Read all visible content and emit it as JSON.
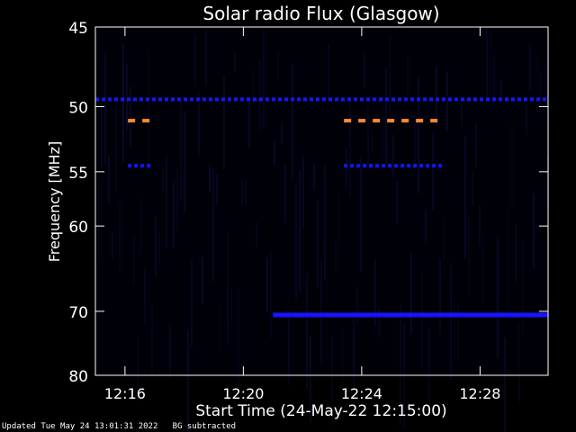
{
  "chart_data": {
    "type": "heatmap",
    "title": "Solar radio Flux (Glasgow)",
    "xlabel": "Start Time (24-May-22 12:15:00)",
    "ylabel": "Frequency [MHz]",
    "x_unit": "minutes after 12:15:00",
    "xlim": [
      0,
      15.3
    ],
    "ylim": [
      45,
      80
    ],
    "y_scale": "reciprocal (frequency increases downward toward 80)",
    "x_ticks": [
      {
        "value": 1,
        "label": "12:16"
      },
      {
        "value": 5,
        "label": "12:20"
      },
      {
        "value": 9,
        "label": "12:24"
      },
      {
        "value": 13,
        "label": "12:28"
      }
    ],
    "y_ticks": [
      45,
      50,
      55,
      60,
      70,
      80
    ],
    "colors": {
      "background": "#000008",
      "low": "#0a0a30",
      "mid": "#1515ff",
      "high": "#ff8830"
    },
    "features": [
      {
        "freq_mhz": 49.5,
        "x_range": [
          0,
          15.3
        ],
        "intensity": "mid",
        "pattern": "dashed"
      },
      {
        "freq_mhz": 51,
        "x_range": [
          1.1,
          2.1
        ],
        "intensity": "high",
        "pattern": "dashed"
      },
      {
        "freq_mhz": 51,
        "x_range": [
          8.4,
          11.8
        ],
        "intensity": "high",
        "pattern": "dashed"
      },
      {
        "freq_mhz": 54.5,
        "x_range": [
          1.1,
          2.0
        ],
        "intensity": "mid",
        "pattern": "dashed"
      },
      {
        "freq_mhz": 54.5,
        "x_range": [
          8.4,
          11.8
        ],
        "intensity": "mid",
        "pattern": "dashed"
      },
      {
        "freq_mhz": 70.5,
        "x_range": [
          6.0,
          15.3
        ],
        "intensity": "mid",
        "pattern": "solid"
      }
    ]
  },
  "footer": {
    "updated": "Updated Tue May 24 13:01:31 2022",
    "note": "BG subtracted"
  }
}
